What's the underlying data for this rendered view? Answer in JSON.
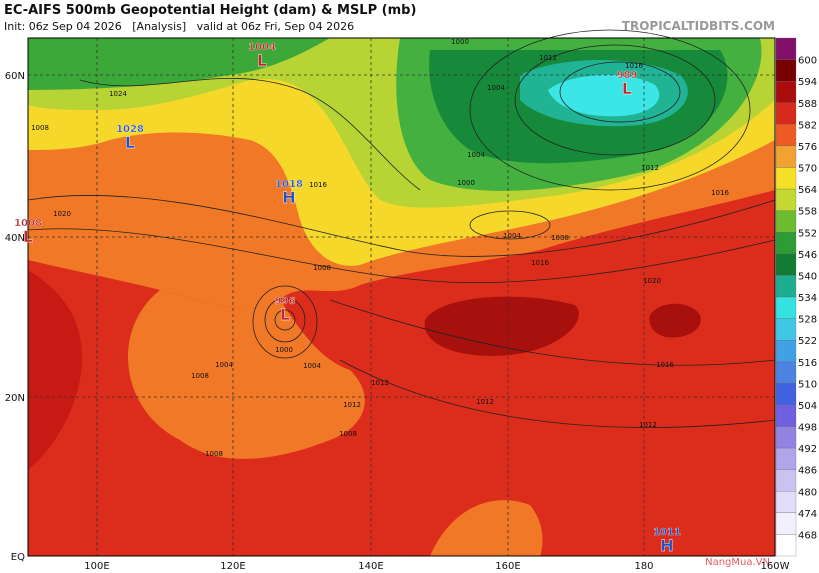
{
  "header": {
    "title": "EC-AIFS 500mb Geopotential Height (dam) & MSLP (mb)",
    "subtitle": "Init: 06z Sep 04 2026   [Analysis]   valid at 06z Fri, Sep 04 2026",
    "brand": "TROPICALTIDBITS.COM"
  },
  "axes": {
    "lat_labels": [
      "60N",
      "40N",
      "20N",
      "EQ"
    ],
    "lon_labels": [
      "100E",
      "120E",
      "140E",
      "160E",
      "180",
      "160W"
    ]
  },
  "colorbar": {
    "ticks": [
      "600",
      "594",
      "588",
      "582",
      "576",
      "570",
      "564",
      "558",
      "552",
      "546",
      "540",
      "534",
      "528",
      "522",
      "516",
      "510",
      "504",
      "498",
      "492",
      "486",
      "480",
      "474",
      "468"
    ]
  },
  "centers": [
    {
      "value": "1004",
      "letter": "L"
    },
    {
      "value": "1028",
      "letter": "L"
    },
    {
      "value": "1018",
      "letter": "H"
    },
    {
      "value": "1008",
      "letter": "L"
    },
    {
      "value": "996",
      "letter": "L"
    },
    {
      "value": "989",
      "letter": "L"
    },
    {
      "value": "1011",
      "letter": "H"
    }
  ],
  "contour_labels": [
    "1000",
    "1004",
    "1008",
    "1012",
    "1016",
    "1020",
    "1024",
    "1008",
    "1012",
    "1016",
    "1000",
    "1004",
    "1008",
    "1012",
    "1016",
    "1004",
    "1008",
    "1012",
    "1016",
    "1020",
    "1000",
    "1004",
    "1008",
    "1012",
    "1016",
    "1012",
    "1008",
    "1004"
  ],
  "watermark": "NangMua.VN"
}
